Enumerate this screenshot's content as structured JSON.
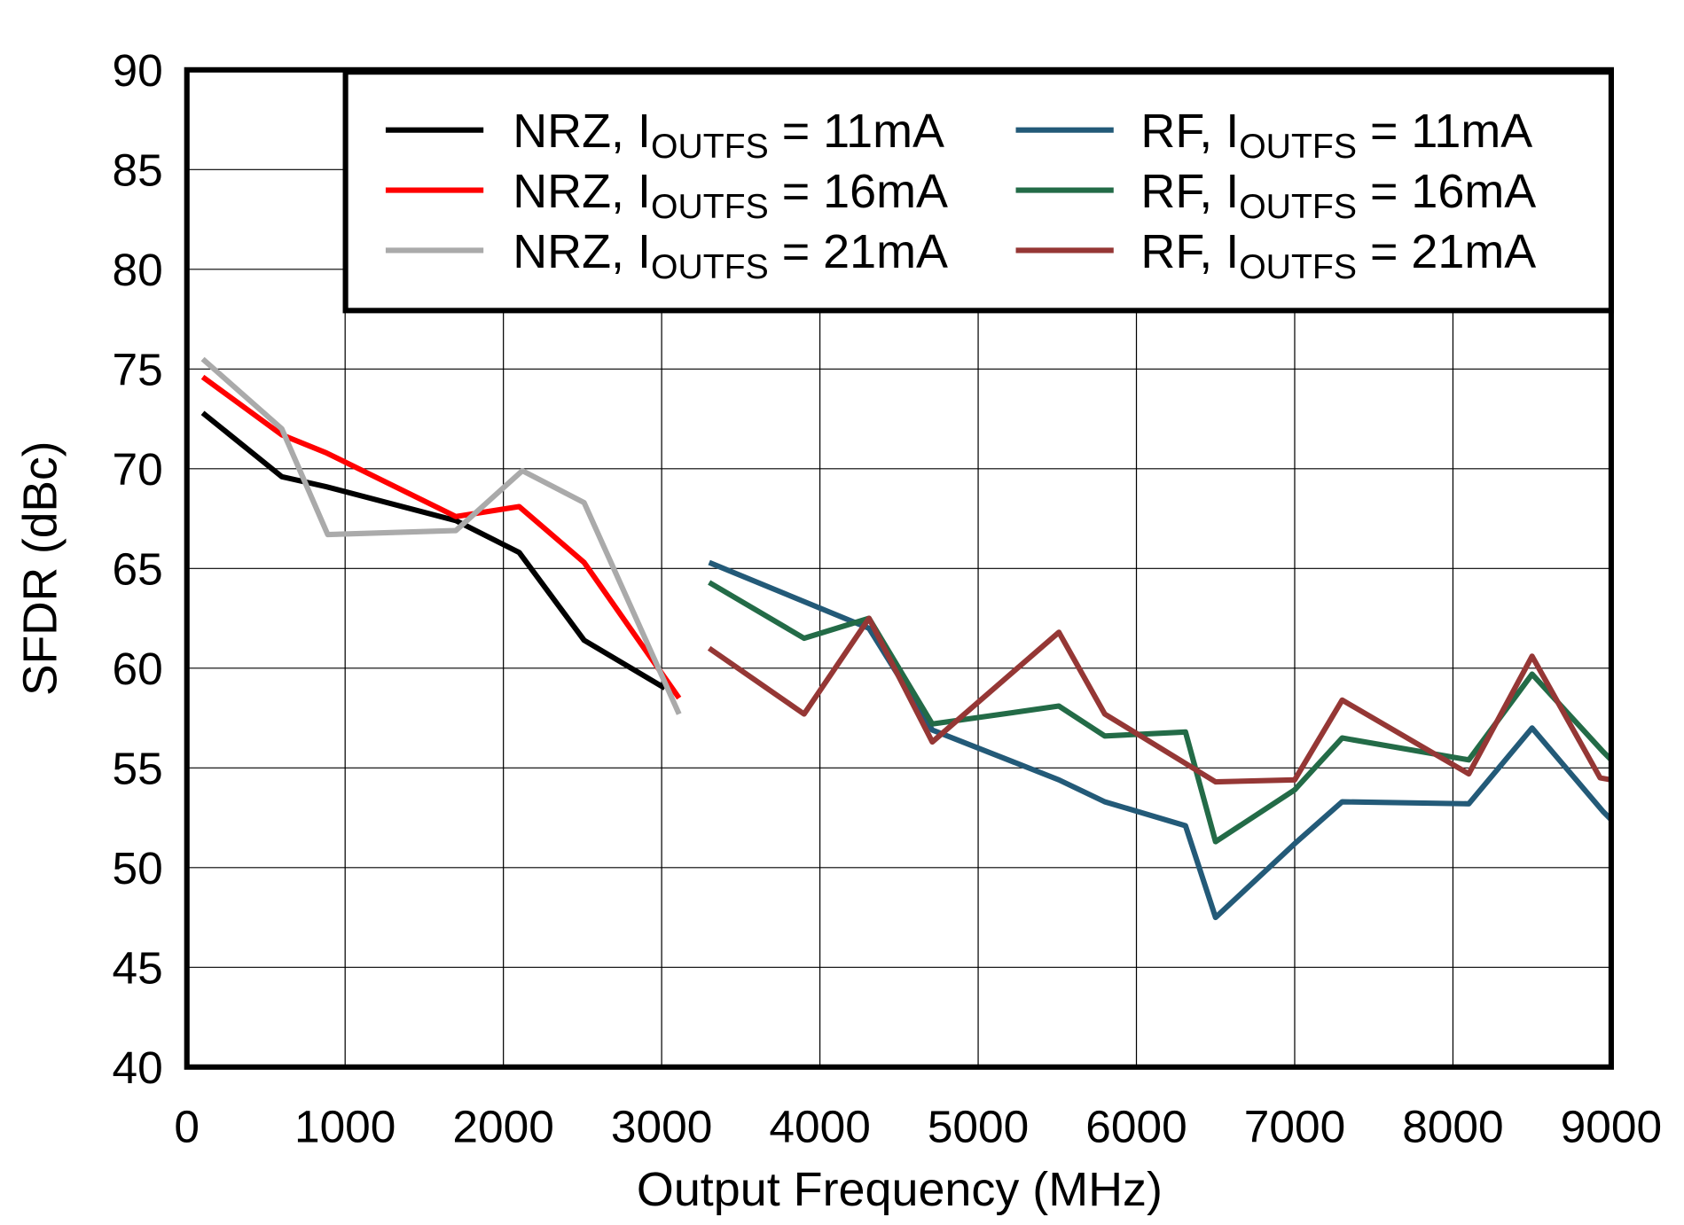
{
  "chart_data": {
    "type": "line",
    "title": "",
    "xlabel": "Output Frequency (MHz)",
    "ylabel": "SFDR (dBc)",
    "xlim": [
      0,
      9000
    ],
    "ylim": [
      40,
      90
    ],
    "xticks": [
      0,
      1000,
      2000,
      3000,
      4000,
      5000,
      6000,
      7000,
      8000,
      9000
    ],
    "yticks": [
      40,
      45,
      50,
      55,
      60,
      65,
      70,
      75,
      80,
      85,
      90
    ],
    "grid": true,
    "legend_placement": "top-right",
    "series": [
      {
        "name": "NRZ, IOUTFS = 11mA",
        "label_main": "NRZ, I",
        "label_sub": "OUTFS",
        "label_tail": " = 11mA",
        "color": "#000000",
        "x": [
          100,
          600,
          880,
          1700,
          2100,
          2510,
          3020
        ],
        "y": [
          72.8,
          69.6,
          69.1,
          67.4,
          65.8,
          61.4,
          59.0
        ]
      },
      {
        "name": "NRZ, IOUTFS = 16mA",
        "label_main": "NRZ, I",
        "label_sub": "OUTFS",
        "label_tail": " = 16mA",
        "color": "#ff0000",
        "x": [
          100,
          600,
          880,
          1700,
          2100,
          2510,
          3110
        ],
        "y": [
          74.6,
          71.7,
          70.8,
          67.6,
          68.1,
          65.3,
          58.5
        ]
      },
      {
        "name": "NRZ, IOUTFS = 21mA",
        "label_main": "NRZ, I",
        "label_sub": "OUTFS",
        "label_tail": " = 21mA",
        "color": "#aaaaaa",
        "x": [
          100,
          600,
          890,
          1700,
          2120,
          2510,
          3110
        ],
        "y": [
          75.5,
          72.0,
          66.7,
          66.9,
          69.9,
          68.3,
          57.7
        ]
      },
      {
        "name": "RF, IOUTFS = 11mA",
        "label_main": "RF, I",
        "label_sub": "OUTFS",
        "label_tail": " = 11mA",
        "color": "#235a78",
        "x": [
          3300,
          4310,
          4710,
          5510,
          5800,
          6310,
          6500,
          7000,
          7300,
          8100,
          8500,
          8950,
          9000
        ],
        "y": [
          65.3,
          62.0,
          56.9,
          54.4,
          53.3,
          52.1,
          47.5,
          51.2,
          53.3,
          53.2,
          57.0,
          52.8,
          52.4
        ]
      },
      {
        "name": "RF, IOUTFS = 16mA",
        "label_main": "RF, I",
        "label_sub": "OUTFS",
        "label_tail": " = 16mA",
        "color": "#236b47",
        "x": [
          3300,
          3900,
          4310,
          4710,
          5510,
          5800,
          6310,
          6500,
          7000,
          7300,
          8100,
          8500,
          8950,
          9000
        ],
        "y": [
          64.3,
          61.5,
          62.5,
          57.2,
          58.1,
          56.6,
          56.8,
          51.3,
          53.9,
          56.5,
          55.4,
          59.7,
          55.8,
          55.4
        ]
      },
      {
        "name": "RF, IOUTFS = 21mA",
        "label_main": "RF, I",
        "label_sub": "OUTFS",
        "label_tail": " = 21mA",
        "color": "#953735",
        "x": [
          3300,
          3900,
          4310,
          4710,
          5510,
          5800,
          6500,
          7000,
          7300,
          8100,
          8500,
          8930,
          9000
        ],
        "y": [
          61.0,
          57.7,
          62.5,
          56.3,
          61.8,
          57.7,
          54.3,
          54.4,
          58.4,
          54.7,
          60.6,
          54.5,
          54.4
        ]
      }
    ]
  }
}
